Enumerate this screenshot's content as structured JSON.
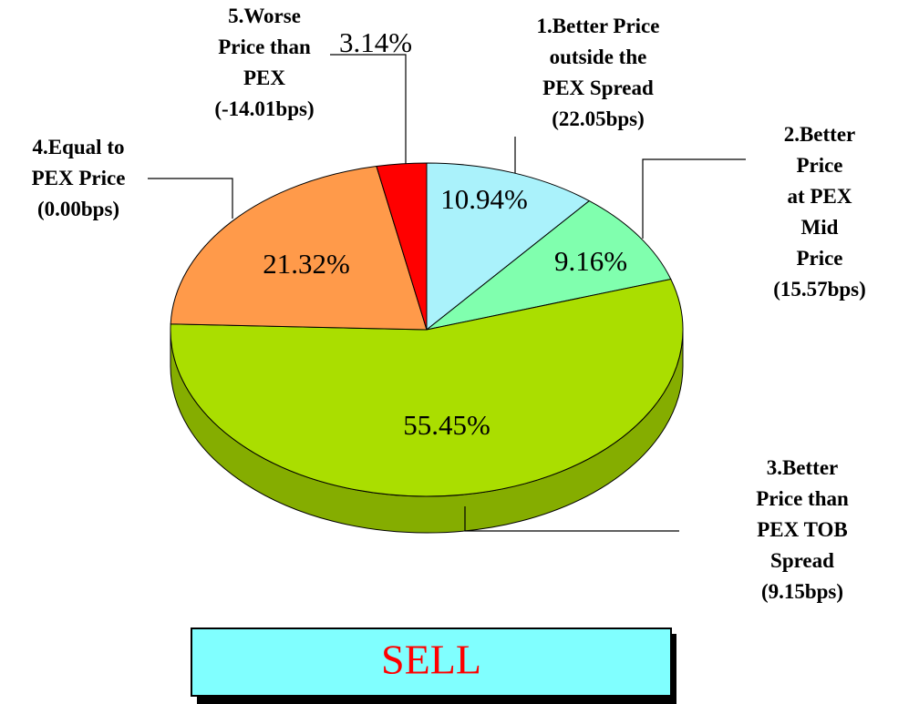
{
  "chart_data": {
    "type": "pie",
    "categories": [
      "1.Better Price\noutside the\nPEX Spread\n(22.05bps)",
      "2.Better Price\nat PEX Mid\nPrice\n(15.57bps)",
      "3.Better\nPrice than\nPEX TOB\nSpread\n(9.15bps)",
      "4.Equal to\nPEX Price\n(0.00bps)",
      "5.Worse\nPrice than\nPEX\n(-14.01bps)"
    ],
    "values": [
      10.94,
      9.16,
      55.45,
      21.32,
      3.14
    ],
    "value_labels": [
      "10.94%",
      "9.16%",
      "55.45%",
      "21.32%",
      "3.14%"
    ],
    "colors": [
      "#aaf2fb",
      "#80ffae",
      "#aade00",
      "#ff9a4a",
      "#ff0000"
    ],
    "annotation": "SELL"
  }
}
